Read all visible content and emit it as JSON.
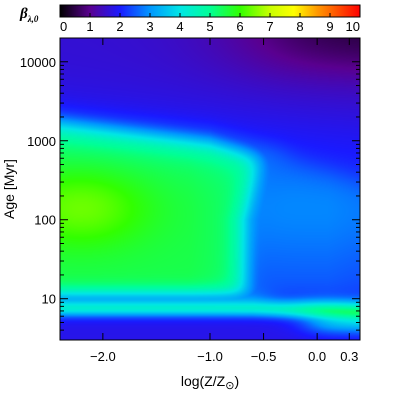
{
  "chart_data": {
    "type": "heatmap",
    "title": "",
    "colorbar": {
      "label_main": "β",
      "label_sub": "λ,0",
      "range": [
        0,
        10
      ],
      "ticks": [
        "0",
        "1",
        "2",
        "3",
        "4",
        "5",
        "6",
        "7",
        "8",
        "9",
        "10"
      ],
      "colormap": "rainbow (black → purple → blue → cyan → green → yellow → red)",
      "stops": [
        {
          "v": 0.0,
          "color": "#000000"
        },
        {
          "v": 1.0,
          "color": "#5a0090"
        },
        {
          "v": 2.0,
          "color": "#1a1aff"
        },
        {
          "v": 3.0,
          "color": "#0096ff"
        },
        {
          "v": 4.0,
          "color": "#00e6e6"
        },
        {
          "v": 5.0,
          "color": "#00ff96"
        },
        {
          "v": 6.0,
          "color": "#32ff00"
        },
        {
          "v": 7.0,
          "color": "#c8ff00"
        },
        {
          "v": 7.8,
          "color": "#ffff00"
        },
        {
          "v": 8.6,
          "color": "#ff9600"
        },
        {
          "v": 10.0,
          "color": "#ff0000"
        }
      ]
    },
    "x_axis": {
      "label_text": "log(Z/Z",
      "label_symbol": "⊙",
      "label_close": ")",
      "range": [
        -2.4,
        0.4
      ],
      "ticks": [
        {
          "value": -2.0,
          "label": "−2.0"
        },
        {
          "value": -1.0,
          "label": "−1.0"
        },
        {
          "value": -0.5,
          "label": "−0.5"
        },
        {
          "value": 0.0,
          "label": "0.0"
        },
        {
          "value": 0.3,
          "label": "0.3"
        }
      ]
    },
    "y_axis": {
      "label_text": "Age",
      "label_unit": "[Myr]",
      "scale": "log",
      "range": [
        3,
        20000
      ],
      "ticks": [
        {
          "value": 10,
          "label": "10"
        },
        {
          "value": 100,
          "label": "100"
        },
        {
          "value": 1000,
          "label": "1000"
        },
        {
          "value": 10000,
          "label": "10000"
        }
      ]
    },
    "field": {
      "description_of_values": "β_λ,0 as a function of log(Z/Zsun) and age",
      "sample_points": [
        {
          "logZ": -2.2,
          "age": 150,
          "beta": 6.2
        },
        {
          "logZ": -2.0,
          "age": 1000,
          "beta": 5.6
        },
        {
          "logZ": -1.0,
          "age": 100,
          "beta": 5.7
        },
        {
          "logZ": -0.6,
          "age": 30,
          "beta": 5.4
        },
        {
          "logZ": -0.3,
          "age": 100,
          "beta": 3.0
        },
        {
          "logZ": 0.0,
          "age": 1000,
          "beta": 2.6
        },
        {
          "logZ": 0.3,
          "age": 100,
          "beta": 2.2
        },
        {
          "logZ": 0.3,
          "age": 6,
          "beta": 5.3
        },
        {
          "logZ": -1.0,
          "age": 5,
          "beta": 2.0
        },
        {
          "logZ": -1.0,
          "age": 3000,
          "beta": 2.4
        },
        {
          "logZ": -2.0,
          "age": 10000,
          "beta": 1.6
        },
        {
          "logZ": 0.3,
          "age": 15000,
          "beta": 0.1
        }
      ]
    }
  }
}
